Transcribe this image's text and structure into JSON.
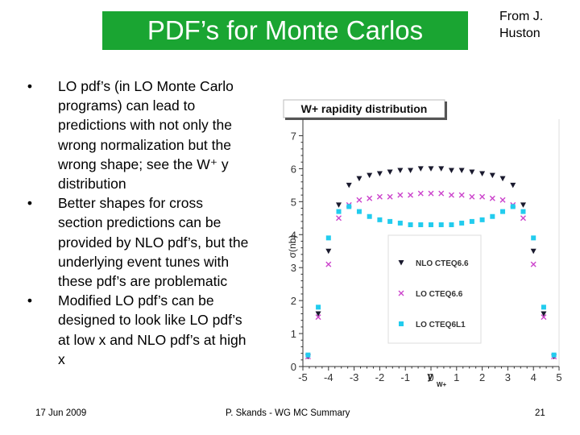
{
  "slide": {
    "title": "PDF’s for Monte Carlos",
    "credit_line1": "From J.",
    "credit_line2": "Huston",
    "bullet_symbol": "•",
    "bullets": [
      [
        "LO pdf’s (in LO Monte Carlo",
        "programs) can lead to",
        "predictions with not only the",
        "wrong normalization but the",
        "wrong shape; see the W⁺ y",
        "distribution"
      ],
      [
        "Better shapes for cross",
        "section predictions can be",
        "provided by NLO pdf’s, but the",
        "underlying event tunes with",
        "these pdf’s are problematic"
      ],
      [
        "Modified LO pdf’s can be",
        "designed to look like LO pdf’s",
        "at low x and NLO pdf’s at high",
        "x"
      ]
    ]
  },
  "footer": {
    "date": "17 Jun 2009",
    "center": "P. Skands - WG MC Summary",
    "page": "21"
  },
  "chart_data": {
    "type": "scatter",
    "title": "W+ rapidity distribution",
    "xlabel": "y",
    "xlabel_sub": "W+",
    "ylabel": "σ(nb)",
    "xlim": [
      -5,
      5
    ],
    "ylim": [
      0,
      7.5
    ],
    "xticks": [
      -5,
      -4,
      -3,
      -2,
      -1,
      0,
      1,
      2,
      3,
      4,
      5
    ],
    "yticks": [
      0,
      1,
      2,
      3,
      4,
      5,
      6,
      7
    ],
    "legend_position": "center-right",
    "x": [
      -4.8,
      -4.4,
      -4.0,
      -3.6,
      -3.2,
      -2.8,
      -2.4,
      -2.0,
      -1.6,
      -1.2,
      -0.8,
      -0.4,
      0.0,
      0.4,
      0.8,
      1.2,
      1.6,
      2.0,
      2.4,
      2.8,
      3.2,
      3.6,
      4.0,
      4.4,
      4.8
    ],
    "series": [
      {
        "name": "NLO CTEQ6.6",
        "color": "#1a1a2e",
        "marker": "triangle-down",
        "values": [
          0.3,
          1.6,
          3.5,
          4.9,
          5.5,
          5.7,
          5.8,
          5.85,
          5.9,
          5.95,
          5.95,
          6.0,
          6.0,
          6.0,
          5.95,
          5.95,
          5.9,
          5.85,
          5.8,
          5.7,
          5.5,
          4.9,
          3.5,
          1.6,
          0.3
        ]
      },
      {
        "name": "LO CTEQ6.6",
        "color": "#cc44cc",
        "marker": "x",
        "values": [
          0.3,
          1.5,
          3.1,
          4.5,
          4.9,
          5.05,
          5.1,
          5.15,
          5.15,
          5.2,
          5.2,
          5.25,
          5.25,
          5.25,
          5.2,
          5.2,
          5.15,
          5.15,
          5.1,
          5.05,
          4.9,
          4.5,
          3.1,
          1.5,
          0.3
        ]
      },
      {
        "name": "LO CTEQ6L1",
        "color": "#22ccee",
        "marker": "square",
        "values": [
          0.35,
          1.8,
          3.9,
          4.7,
          4.85,
          4.7,
          4.55,
          4.45,
          4.4,
          4.35,
          4.3,
          4.3,
          4.3,
          4.3,
          4.3,
          4.35,
          4.4,
          4.45,
          4.55,
          4.7,
          4.85,
          4.7,
          3.9,
          1.8,
          0.35
        ]
      }
    ]
  }
}
